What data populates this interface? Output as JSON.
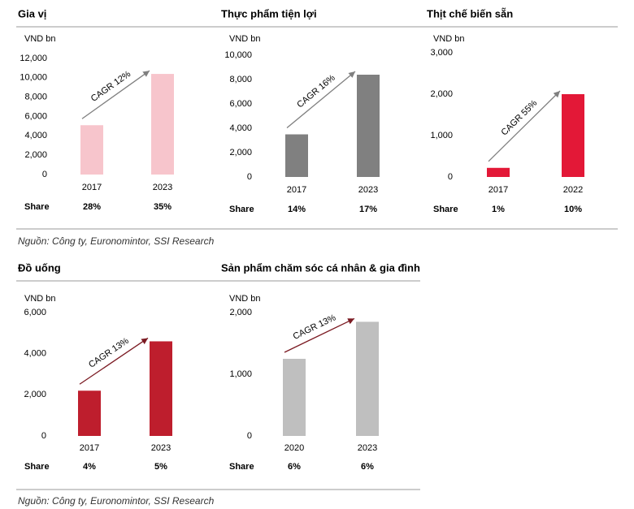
{
  "chart_data": [
    {
      "type": "bar",
      "title": "Gia vị",
      "y_label": "VND bn",
      "categories": [
        "2017",
        "2023"
      ],
      "values": [
        5100,
        10400
      ],
      "color": "#f7c5cc",
      "ylim": [
        0,
        12000
      ],
      "yticks": [
        0,
        {
          "value": 2000,
          "label": "2,000"
        },
        {
          "value": 4000,
          "label": "4,000"
        },
        {
          "value": 6000,
          "label": "6,000"
        },
        {
          "value": 8000,
          "label": "8,000"
        },
        {
          "value": 10000,
          "label": "10,000"
        },
        {
          "value": 12000,
          "label": "12,000"
        }
      ],
      "annotation": "CAGR 12%",
      "arrow_color": "#7f7f7f",
      "share_title": "Share",
      "shares": [
        "28%",
        "35%"
      ]
    },
    {
      "type": "bar",
      "title": "Thực phẩm tiện lợi",
      "y_label": "VND bn",
      "categories": [
        "2017",
        "2023"
      ],
      "values": [
        3500,
        8400
      ],
      "color": "#808080",
      "ylim": [
        0,
        10000
      ],
      "yticks": [
        0,
        {
          "value": 2000,
          "label": "2,000"
        },
        {
          "value": 4000,
          "label": "4,000"
        },
        {
          "value": 6000,
          "label": "6,000"
        },
        {
          "value": 8000,
          "label": "8,000"
        },
        {
          "value": 10000,
          "label": "10,000"
        }
      ],
      "annotation": "CAGR 16%",
      "arrow_color": "#7f7f7f",
      "share_title": "Share",
      "shares": [
        "14%",
        "17%"
      ]
    },
    {
      "type": "bar",
      "title": "Thịt chế biến sẵn",
      "y_label": "VND bn",
      "categories": [
        "2017",
        "2022"
      ],
      "values": [
        220,
        2000
      ],
      "color": "#e31837",
      "ylim": [
        0,
        3000
      ],
      "yticks": [
        0,
        {
          "value": 1000,
          "label": "1,000"
        },
        {
          "value": 2000,
          "label": "2,000"
        },
        {
          "value": 3000,
          "label": "3,000"
        }
      ],
      "annotation": "CAGR 55%",
      "arrow_color": "#7f7f7f",
      "share_title": "Share",
      "shares": [
        "1%",
        "10%"
      ]
    },
    {
      "type": "bar",
      "title": "Đồ uống",
      "y_label": "VND bn",
      "categories": [
        "2017",
        "2023"
      ],
      "values": [
        2200,
        4600
      ],
      "color": "#be1e2d",
      "ylim": [
        0,
        6000
      ],
      "yticks": [
        0,
        {
          "value": 2000,
          "label": "2,000"
        },
        {
          "value": 4000,
          "label": "4,000"
        },
        {
          "value": 6000,
          "label": "6,000"
        }
      ],
      "annotation": "CAGR 13%",
      "arrow_color": "#7b1a22",
      "share_title": "Share",
      "shares": [
        "4%",
        "5%"
      ]
    },
    {
      "type": "bar",
      "title": "Sản phẩm chăm sóc cá nhân & gia đình",
      "y_label": "VND bn",
      "categories": [
        "2020",
        "2023"
      ],
      "values": [
        1250,
        1850
      ],
      "color": "#bfbfbf",
      "ylim": [
        0,
        2000
      ],
      "yticks": [
        0,
        {
          "value": 1000,
          "label": "1,000"
        },
        {
          "value": 2000,
          "label": "2,000"
        }
      ],
      "annotation": "CAGR 13%",
      "arrow_color": "#7b1a22",
      "share_title": "Share",
      "shares": [
        "6%",
        "6%"
      ]
    }
  ],
  "sources": [
    "Nguồn: Công ty, Euronomintor, SSI Research",
    "Nguồn: Công ty, Euronomintor, SSI Research"
  ]
}
